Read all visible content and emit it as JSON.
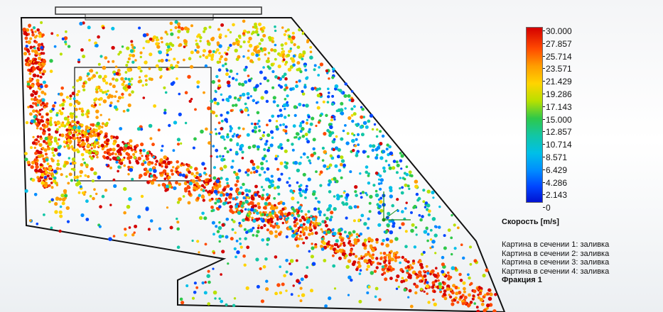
{
  "legend": {
    "title": "Скорость [m/s]",
    "ticks": [
      "30.000",
      "27.857",
      "25.714",
      "23.571",
      "21.429",
      "19.286",
      "17.143",
      "15.000",
      "12.857",
      "10.714",
      "8.571",
      "6.429",
      "4.286",
      "2.143",
      "0"
    ],
    "captions": [
      "Картина в сечении 1: заливка",
      "Картина в сечении 2: заливка",
      "Картина в сечении 3: заливка",
      "Картина в сечении 4: заливка"
    ],
    "fraction_label": "Фракция 1"
  },
  "colors": {
    "max": "#d40000",
    "high": "#ff9d00",
    "mid": "#2ec84a",
    "low": "#00bfe8",
    "min": "#0012d0",
    "outline": "#111111",
    "axis_green": "#148a14"
  }
}
